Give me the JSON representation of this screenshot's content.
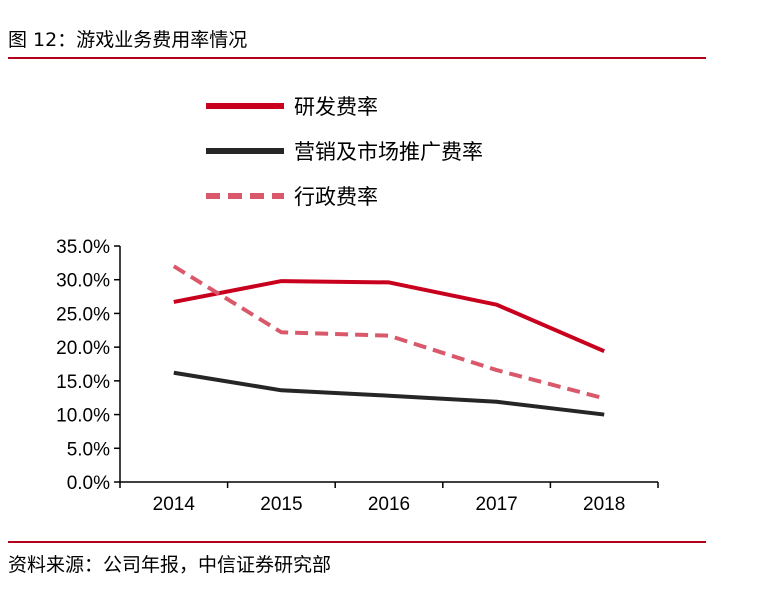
{
  "title": "图 12：游戏业务费用率情况",
  "source": "资料来源：公司年报，中信证券研究部",
  "chart_data": {
    "type": "line",
    "categories": [
      "2014",
      "2015",
      "2016",
      "2017",
      "2018"
    ],
    "ylim": [
      0,
      35
    ],
    "yticks": [
      "0.0%",
      "5.0%",
      "10.0%",
      "15.0%",
      "20.0%",
      "25.0%",
      "30.0%",
      "35.0%"
    ],
    "grid": false,
    "legend_position": "top",
    "series": [
      {
        "name": "研发费率",
        "values": [
          26.7,
          29.8,
          29.6,
          26.3,
          19.4
        ],
        "color": "#c8001e",
        "dash": "solid"
      },
      {
        "name": "营销及市场推广费率",
        "values": [
          16.2,
          13.6,
          12.8,
          11.9,
          10.0
        ],
        "color": "#262626",
        "dash": "solid"
      },
      {
        "name": "行政费率",
        "values": [
          32.0,
          22.2,
          21.7,
          16.6,
          12.4
        ],
        "color": "#d9596b",
        "dash": "dashed"
      }
    ]
  }
}
